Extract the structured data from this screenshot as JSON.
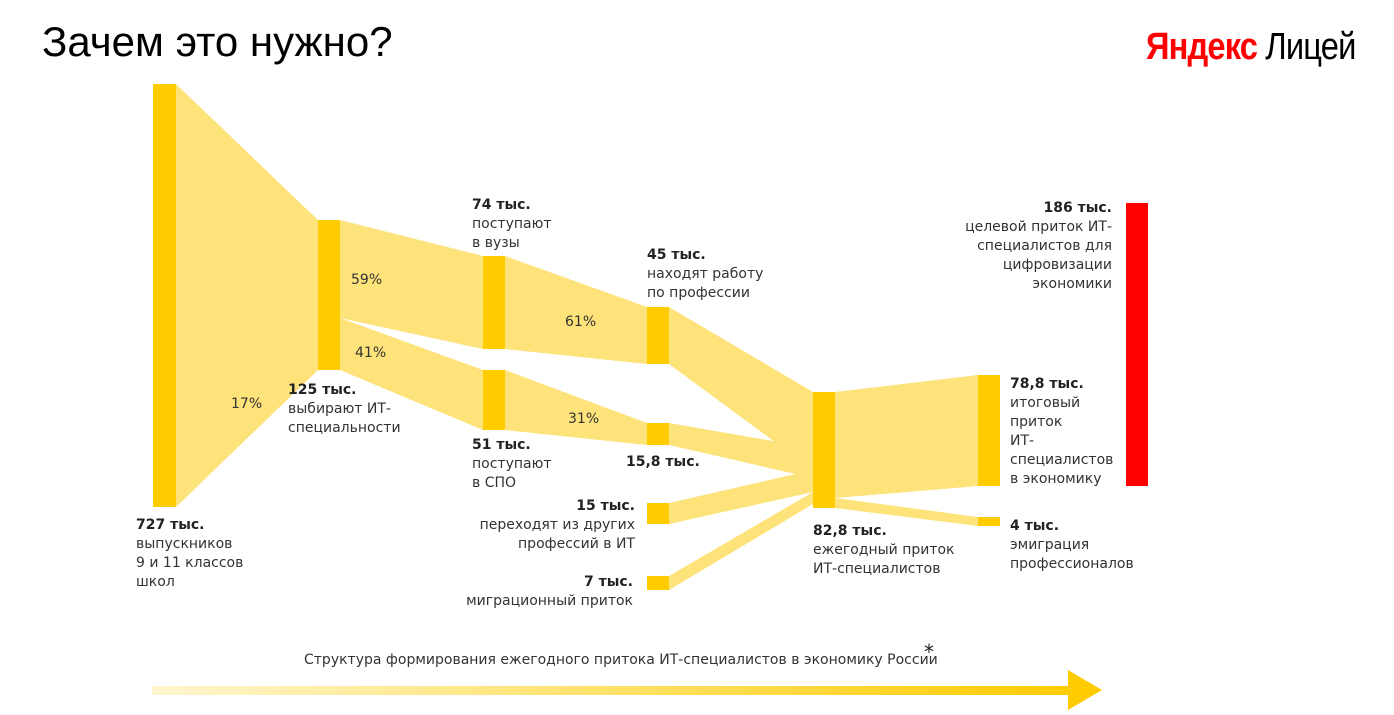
{
  "header": {
    "title": "Зачем это нужно?",
    "logo": {
      "brand": "Яндекс",
      "product": "Лицей"
    }
  },
  "colors": {
    "bar": "#fecc00",
    "flow": "#fee27a",
    "target": "#ff0000",
    "brand_red": "#ff0000",
    "arrow_start": "#fff6cf",
    "arrow_end": "#fecc00"
  },
  "nodes": [
    {
      "id": "graduates",
      "value": "727 тыс.",
      "text": [
        "выпускников",
        "9 и 11 классов",
        "школ"
      ]
    },
    {
      "id": "it_choice",
      "value": "125 тыс.",
      "text": [
        "выбирают ИТ-",
        "специальности"
      ]
    },
    {
      "id": "universities",
      "value": "74 тыс.",
      "text": [
        "поступают",
        "в вузы"
      ]
    },
    {
      "id": "spo",
      "value": "51 тыс.",
      "text": [
        "поступают",
        "в СПО"
      ]
    },
    {
      "id": "jobs",
      "value": "45 тыс.",
      "text": [
        "находят работу",
        "по профессии"
      ]
    },
    {
      "id": "spo_jobs",
      "value": "15,8 тыс.",
      "text": []
    },
    {
      "id": "career_change",
      "value": "15 тыс.",
      "text": [
        "переходят из других",
        "профессий в ИТ"
      ]
    },
    {
      "id": "migration",
      "value": "7 тыс.",
      "text": [
        "миграционный приток"
      ]
    },
    {
      "id": "annual_inflow",
      "value": "82,8 тыс.",
      "text": [
        "ежегодный приток",
        "ИТ-специалистов"
      ]
    },
    {
      "id": "final_inflow",
      "value": "78,8 тыс.",
      "text": [
        "итоговый",
        "приток",
        "ИТ-",
        "специалистов",
        "в экономику"
      ]
    },
    {
      "id": "emigration",
      "value": "4 тыс.",
      "text": [
        "эмиграция",
        "профессионалов"
      ]
    },
    {
      "id": "target",
      "value": "186 тыс.",
      "text": [
        "целевой приток ИТ-",
        "специалистов для",
        "цифровизации",
        "экономики"
      ]
    }
  ],
  "percentages": {
    "graduates_to_it": "17%",
    "it_to_universities": "59%",
    "it_to_spo": "41%",
    "universities_to_jobs": "61%",
    "spo_to_jobs": "31%"
  },
  "caption": "Структура формирования ежегодного притока ИТ-специалистов в экономику России",
  "footnote_mark": "*"
}
